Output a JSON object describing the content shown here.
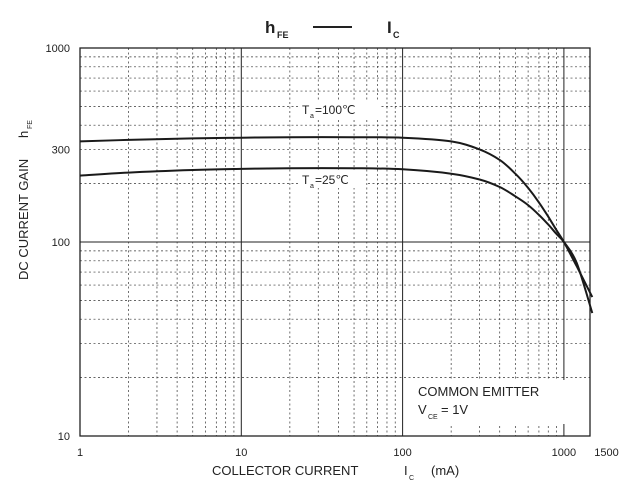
{
  "chart_data": {
    "type": "line",
    "title": {
      "left": "h",
      "left_sub": "FE",
      "right": "I",
      "right_sub": "C"
    },
    "xlabel": {
      "main": "COLLECTOR CURRENT",
      "symbol": "I",
      "symbol_sub": "C",
      "unit": "(mA)"
    },
    "ylabel": {
      "main": "DC CURRENT GAIN",
      "symbol": "h",
      "symbol_sub": "FE"
    },
    "x_scale": "log",
    "y_scale": "log",
    "xlim": [
      1,
      1500
    ],
    "ylim": [
      10,
      1000
    ],
    "x_ticks": [
      {
        "value": 1,
        "label": "1"
      },
      {
        "value": 10,
        "label": "10"
      },
      {
        "value": 100,
        "label": "100"
      },
      {
        "value": 1000,
        "label": "1000"
      },
      {
        "value": 1500,
        "label": "1500"
      }
    ],
    "y_ticks": [
      {
        "value": 10,
        "label": "10"
      },
      {
        "value": 100,
        "label": "100"
      },
      {
        "value": 300,
        "label": "300"
      },
      {
        "value": 1000,
        "label": "1000"
      }
    ],
    "grid": true,
    "series": [
      {
        "name": "Ta=100°C",
        "label_main": "T",
        "label_sub": "a",
        "label_rest": "=100℃",
        "x": [
          1,
          2,
          5,
          10,
          20,
          50,
          100,
          200,
          300,
          400,
          500,
          600,
          700,
          800,
          900,
          1000,
          1200,
          1500
        ],
        "y": [
          330,
          336,
          342,
          345,
          347,
          347,
          345,
          330,
          300,
          265,
          225,
          190,
          160,
          135,
          115,
          100,
          75,
          52
        ]
      },
      {
        "name": "Ta=25°C",
        "label_main": "T",
        "label_sub": "a",
        "label_rest": "=25℃",
        "x": [
          1,
          2,
          5,
          10,
          20,
          50,
          100,
          200,
          300,
          400,
          500,
          600,
          700,
          800,
          900,
          1000,
          1200,
          1500
        ],
        "y": [
          220,
          228,
          235,
          238,
          240,
          240,
          237,
          225,
          210,
          192,
          172,
          155,
          138,
          123,
          110,
          100,
          78,
          43
        ]
      }
    ],
    "annotation": {
      "line1": "COMMON EMITTER",
      "line2_main": "V",
      "line2_sub": "CE",
      "line2_rest": "= 1V"
    }
  }
}
